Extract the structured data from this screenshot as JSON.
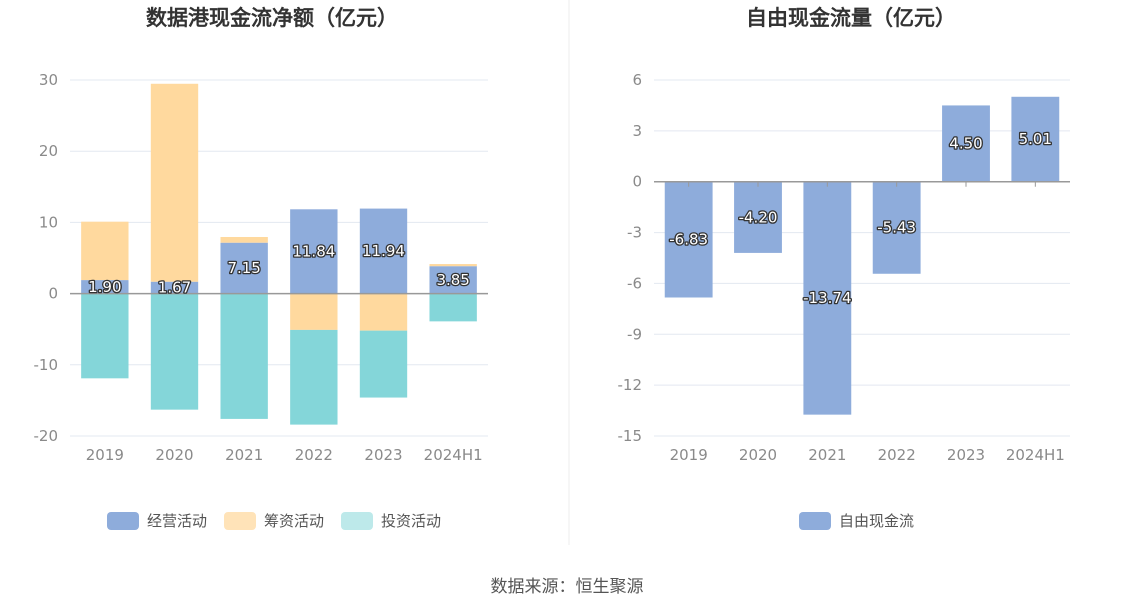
{
  "colors": {
    "operating": "#8eacdb",
    "financing": "#ffd99e",
    "investing": "#84d6d9",
    "free_cash": "#8eacdb",
    "grid": "#e3e8f0",
    "axis": "#999999",
    "legend_operating": "#8eacdb",
    "legend_financing": "#ffe3b8",
    "legend_investing": "#bde9ea"
  },
  "source": "数据来源：恒生聚源",
  "chart_data": [
    {
      "type": "bar",
      "stacked": true,
      "title": "数据港现金流净额（亿元）",
      "categories": [
        "2019",
        "2020",
        "2021",
        "2022",
        "2023",
        "2024H1"
      ],
      "ylim": [
        -20,
        30
      ],
      "yticks": [
        "30",
        "20",
        "10",
        "0",
        "-10",
        "-20"
      ],
      "grid": true,
      "legend_position": "bottom",
      "series": [
        {
          "name": "经营活动",
          "key": "operating",
          "values": [
            1.9,
            1.67,
            7.15,
            11.84,
            11.94,
            3.85
          ],
          "labels": [
            "1.90",
            "1.67",
            "7.15",
            "11.84",
            "11.94",
            "3.85"
          ]
        },
        {
          "name": "筹资活动",
          "key": "financing",
          "values": [
            8.2,
            27.8,
            0.8,
            -5.1,
            -5.2,
            0.3
          ]
        },
        {
          "name": "投资活动",
          "key": "investing",
          "values": [
            -11.9,
            -16.3,
            -17.6,
            -13.3,
            -9.4,
            -3.9
          ]
        }
      ]
    },
    {
      "type": "bar",
      "title": "自由现金流量（亿元）",
      "categories": [
        "2019",
        "2020",
        "2021",
        "2022",
        "2023",
        "2024H1"
      ],
      "ylim": [
        -15,
        6
      ],
      "yticks": [
        "6",
        "3",
        "0",
        "-3",
        "-6",
        "-9",
        "-12",
        "-15"
      ],
      "grid": true,
      "legend_position": "bottom",
      "series": [
        {
          "name": "自由现金流",
          "key": "free_cash",
          "values": [
            -6.83,
            -4.2,
            -13.74,
            -5.43,
            4.5,
            5.01
          ],
          "labels": [
            "-6.83",
            "-4.20",
            "-13.74",
            "-5.43",
            "4.50",
            "5.01"
          ]
        }
      ]
    }
  ]
}
